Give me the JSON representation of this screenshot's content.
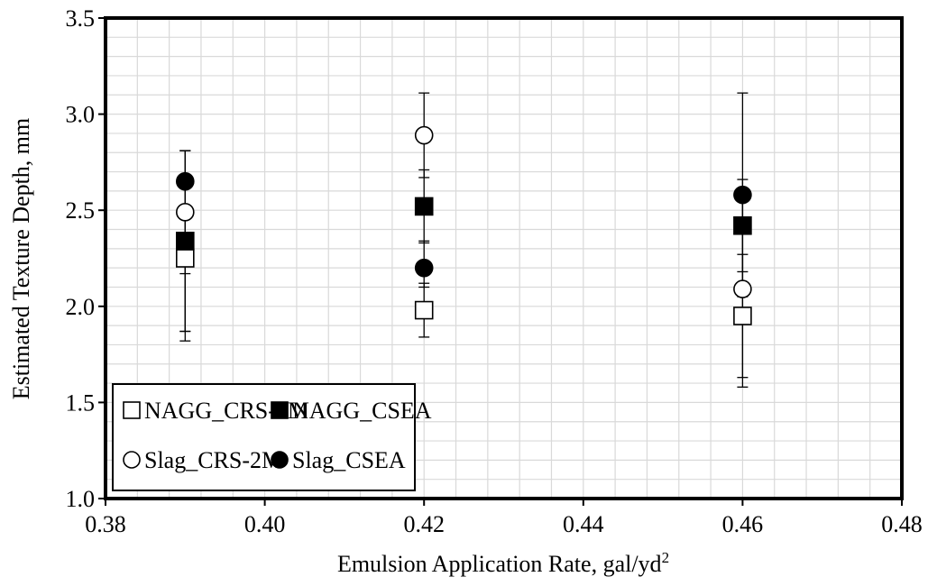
{
  "chart_data": {
    "type": "scatter",
    "xlabel": "Emulsion Application Rate, gal/yd",
    "xlabel_superscript": "2",
    "ylabel": "Estimated Texture Depth, mm",
    "xlim": [
      0.38,
      0.48
    ],
    "ylim": [
      1.0,
      3.5
    ],
    "x_ticks": [
      "0.38",
      "0.40",
      "0.42",
      "0.44",
      "0.46",
      "0.48"
    ],
    "y_ticks": [
      "1.0",
      "1.5",
      "2.0",
      "2.5",
      "3.0",
      "3.5"
    ],
    "grid": "major and minor",
    "legend_position": "bottom-left",
    "series": [
      {
        "name": "NAGG_CRS-2M",
        "marker": "square-open",
        "points": [
          {
            "x": 0.39,
            "y": 2.25,
            "err_low": 1.87,
            "err_high": 2.63
          },
          {
            "x": 0.42,
            "y": 1.98,
            "err_low": 1.84,
            "err_high": 2.12
          },
          {
            "x": 0.46,
            "y": 1.95,
            "err_low": 1.63,
            "err_high": 2.27
          }
        ]
      },
      {
        "name": "NAGG_CSEA",
        "marker": "square-filled",
        "points": [
          {
            "x": 0.39,
            "y": 2.34,
            "err_low": 1.87,
            "err_high": 2.81
          },
          {
            "x": 0.42,
            "y": 2.52,
            "err_low": 2.33,
            "err_high": 2.71
          },
          {
            "x": 0.46,
            "y": 2.42,
            "err_low": 2.18,
            "err_high": 2.66
          }
        ]
      },
      {
        "name": "Slag_CRS-2M",
        "marker": "circle-open",
        "points": [
          {
            "x": 0.39,
            "y": 2.49,
            "err_low": 2.17,
            "err_high": 2.81
          },
          {
            "x": 0.42,
            "y": 2.89,
            "err_low": 2.67,
            "err_high": 3.11
          },
          {
            "x": 0.46,
            "y": 2.09,
            "err_low": 1.58,
            "err_high": 2.6
          }
        ]
      },
      {
        "name": "Slag_CSEA",
        "marker": "circle-filled",
        "points": [
          {
            "x": 0.39,
            "y": 2.65,
            "err_low": 1.82,
            "err_high": 2.81
          },
          {
            "x": 0.42,
            "y": 2.2,
            "err_low": 2.1,
            "err_high": 2.34
          },
          {
            "x": 0.46,
            "y": 2.58,
            "err_low": 2.05,
            "err_high": 3.11
          }
        ]
      }
    ],
    "colors": {
      "marker": "#000000",
      "grid": "#d9d9d9",
      "axis": "#000000",
      "background": "#ffffff"
    }
  }
}
